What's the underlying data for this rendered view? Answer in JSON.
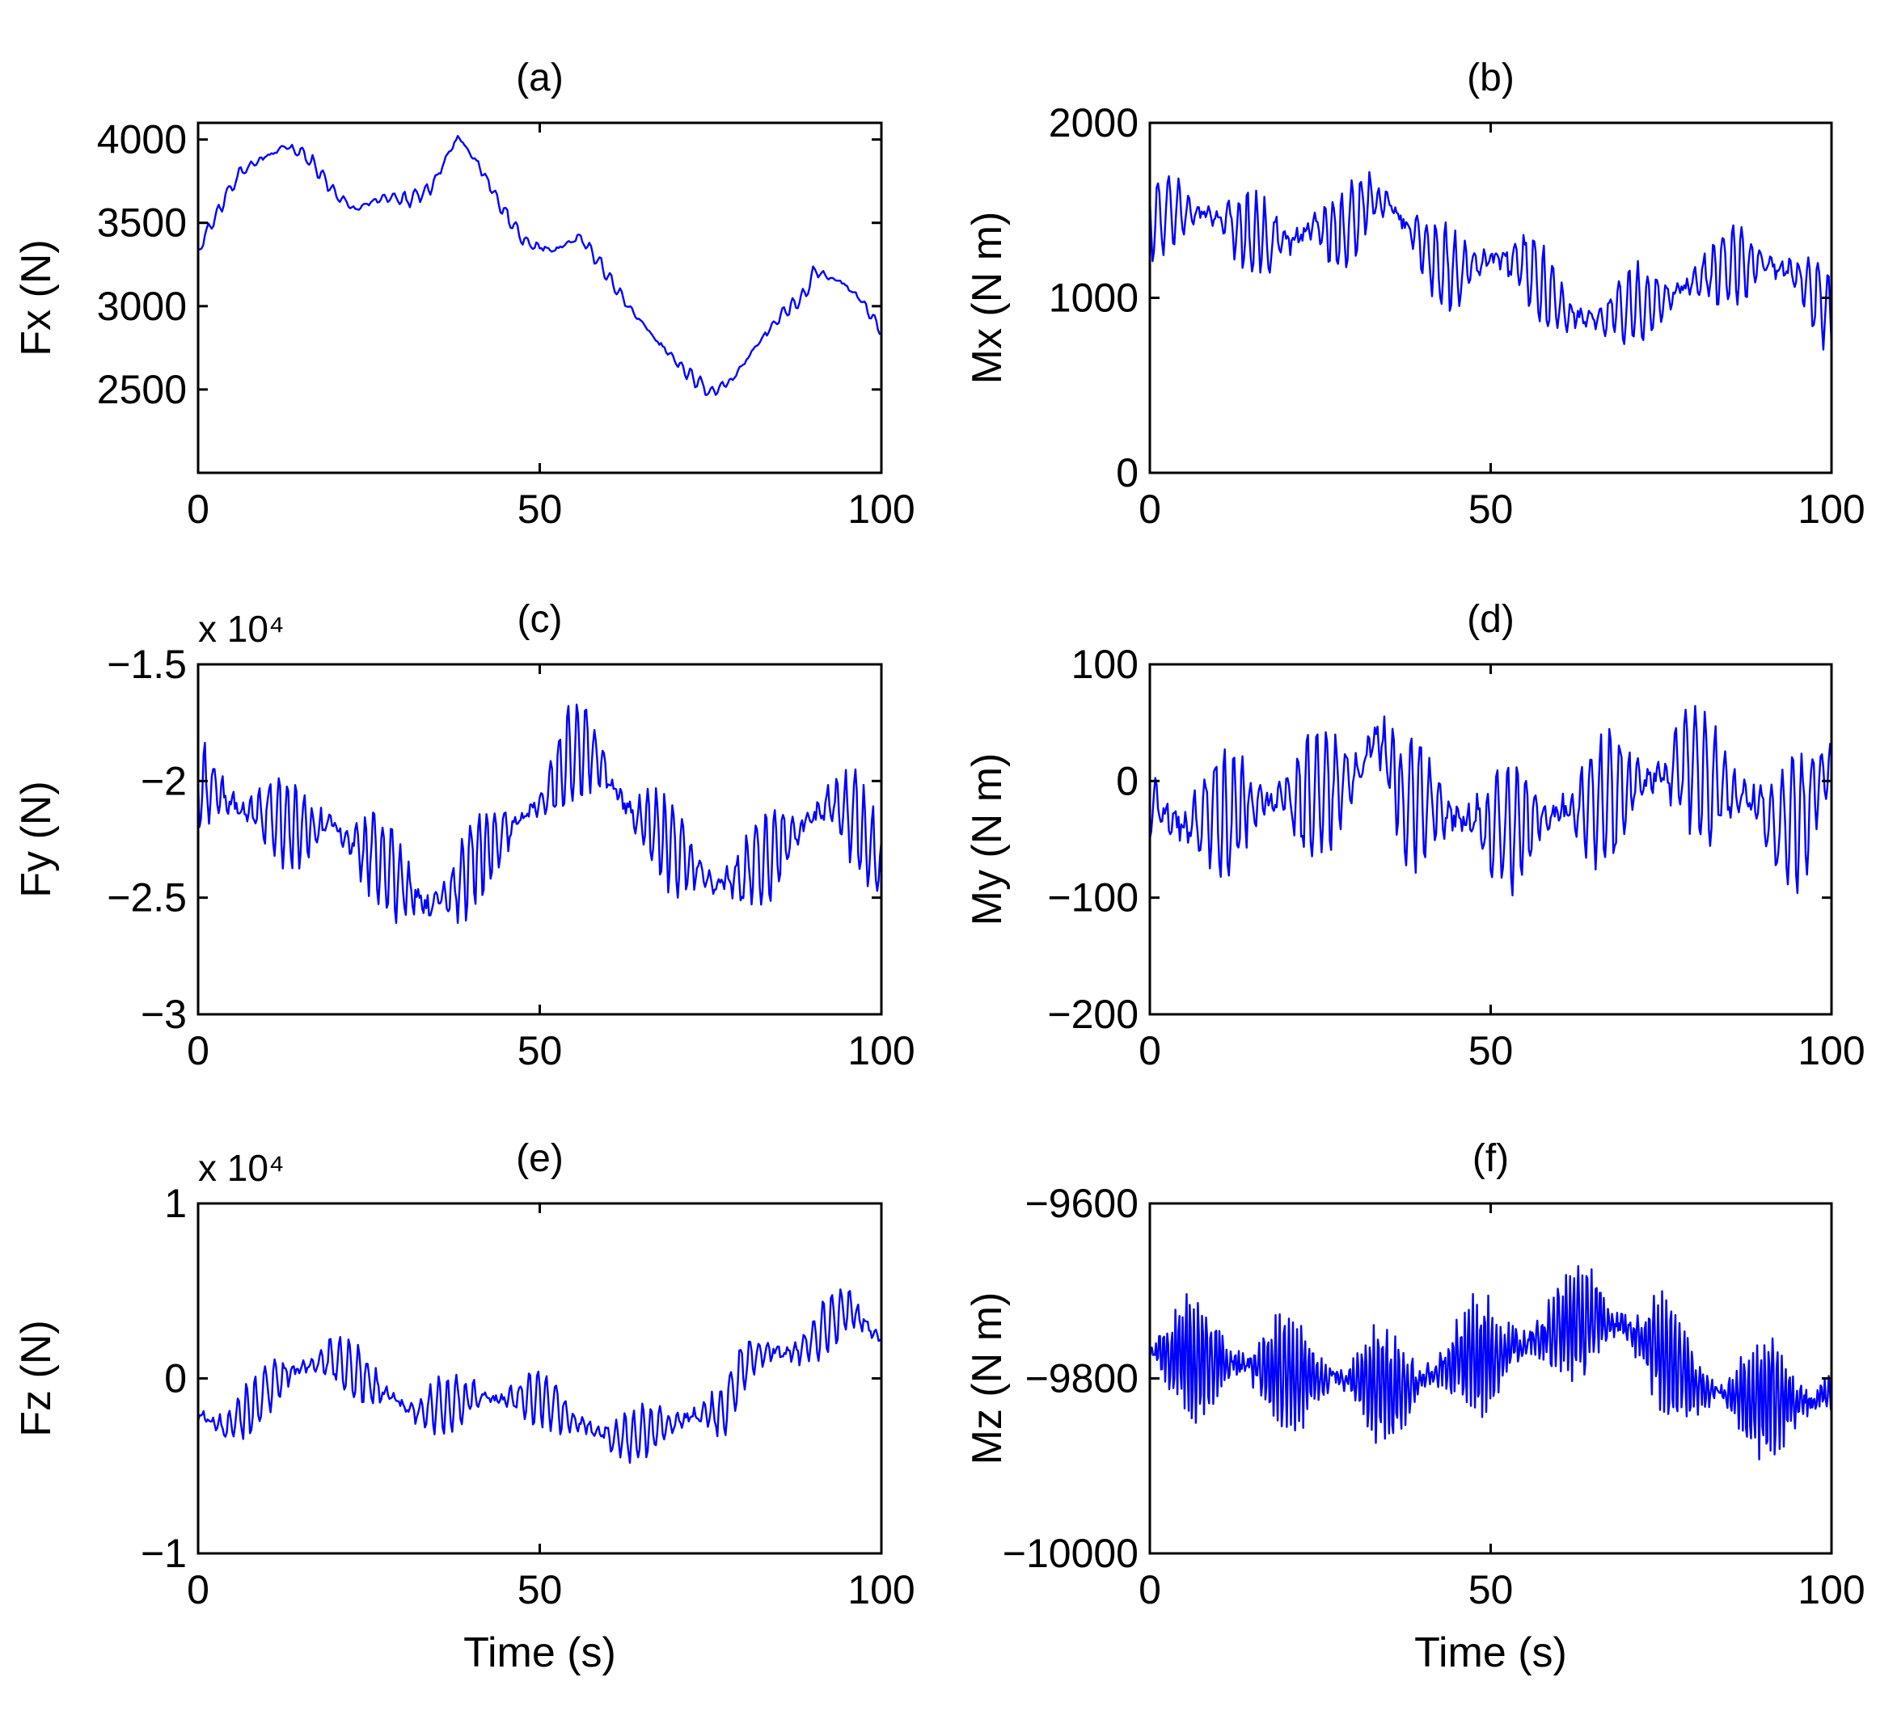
{
  "figure": {
    "line_color": "#0000ff"
  },
  "chart_data": [
    {
      "id": "a",
      "type": "line",
      "title": "(a)",
      "xlabel": "",
      "ylabel": "Fx (N)",
      "exponent": "",
      "xlim": [
        0,
        100
      ],
      "ylim": [
        2000,
        4100
      ],
      "xticks": [
        0,
        50,
        100
      ],
      "yticks": [
        2500,
        3000,
        3500,
        4000
      ],
      "ytick_labels": [
        "2500",
        "3000",
        "3500",
        "4000"
      ],
      "series": [
        {
          "name": "Fx",
          "sample_step": 0.25,
          "noise_amp": 45,
          "noise_period": 1.5,
          "keypoints": [
            [
              0,
              3330
            ],
            [
              2,
              3500
            ],
            [
              6,
              3800
            ],
            [
              10,
              3900
            ],
            [
              13,
              3960
            ],
            [
              16,
              3900
            ],
            [
              20,
              3680
            ],
            [
              23,
              3580
            ],
            [
              27,
              3650
            ],
            [
              31,
              3640
            ],
            [
              34,
              3700
            ],
            [
              38,
              4020
            ],
            [
              41,
              3850
            ],
            [
              45,
              3550
            ],
            [
              48,
              3380
            ],
            [
              52,
              3330
            ],
            [
              56,
              3420
            ],
            [
              59,
              3240
            ],
            [
              63,
              3000
            ],
            [
              67,
              2800
            ],
            [
              71,
              2620
            ],
            [
              75,
              2480
            ],
            [
              78,
              2550
            ],
            [
              82,
              2780
            ],
            [
              86,
              2980
            ],
            [
              89,
              3070
            ],
            [
              90,
              3210
            ],
            [
              94,
              3150
            ],
            [
              97,
              3040
            ],
            [
              100,
              2850
            ]
          ]
        }
      ]
    },
    {
      "id": "b",
      "type": "line",
      "title": "(b)",
      "xlabel": "",
      "ylabel": "Mx (N m)",
      "exponent": "",
      "xlim": [
        0,
        100
      ],
      "ylim": [
        0,
        2000
      ],
      "xticks": [
        0,
        50,
        100
      ],
      "yticks": [
        0,
        1000,
        2000
      ],
      "ytick_labels": [
        "0",
        "1000",
        "2000"
      ],
      "series": [
        {
          "name": "Mx",
          "sample_step": 0.2,
          "noise_amp": 230,
          "noise_period": 1.4,
          "keypoints": [
            [
              0,
              1450
            ],
            [
              4,
              1500
            ],
            [
              8,
              1480
            ],
            [
              12,
              1420
            ],
            [
              16,
              1350
            ],
            [
              20,
              1320
            ],
            [
              24,
              1400
            ],
            [
              28,
              1360
            ],
            [
              32,
              1550
            ],
            [
              35,
              1560
            ],
            [
              38,
              1400
            ],
            [
              42,
              1200
            ],
            [
              46,
              1150
            ],
            [
              50,
              1220
            ],
            [
              54,
              1200
            ],
            [
              58,
              1050
            ],
            [
              62,
              900
            ],
            [
              66,
              880
            ],
            [
              70,
              950
            ],
            [
              74,
              980
            ],
            [
              78,
              1050
            ],
            [
              82,
              1150
            ],
            [
              86,
              1200
            ],
            [
              90,
              1180
            ],
            [
              94,
              1150
            ],
            [
              97,
              1050
            ],
            [
              100,
              900
            ]
          ]
        }
      ]
    },
    {
      "id": "c",
      "type": "line",
      "title": "(c)",
      "xlabel": "",
      "ylabel": "Fy (N)",
      "exponent": "x 10⁴",
      "xlim": [
        0,
        100
      ],
      "ylim": [
        -3,
        -1.5
      ],
      "xticks": [
        0,
        50,
        100
      ],
      "yticks": [
        -3,
        -2.5,
        -2,
        -1.5
      ],
      "ytick_labels": [
        "−3",
        "−2.5",
        "−2",
        "−1.5"
      ],
      "series": [
        {
          "name": "Fy",
          "sample_step": 0.2,
          "noise_amp": 0.2,
          "noise_period": 1.3,
          "keypoints": [
            [
              0,
              -2.0
            ],
            [
              5,
              -2.1
            ],
            [
              10,
              -2.15
            ],
            [
              15,
              -2.2
            ],
            [
              20,
              -2.2
            ],
            [
              25,
              -2.3
            ],
            [
              30,
              -2.45
            ],
            [
              34,
              -2.55
            ],
            [
              38,
              -2.45
            ],
            [
              42,
              -2.3
            ],
            [
              46,
              -2.2
            ],
            [
              50,
              -2.1
            ],
            [
              54,
              -1.9
            ],
            [
              57,
              -1.85
            ],
            [
              60,
              -2.0
            ],
            [
              64,
              -2.15
            ],
            [
              68,
              -2.25
            ],
            [
              72,
              -2.35
            ],
            [
              76,
              -2.45
            ],
            [
              80,
              -2.4
            ],
            [
              84,
              -2.3
            ],
            [
              88,
              -2.2
            ],
            [
              92,
              -2.1
            ],
            [
              96,
              -2.15
            ],
            [
              100,
              -2.35
            ]
          ]
        }
      ]
    },
    {
      "id": "d",
      "type": "line",
      "title": "(d)",
      "xlabel": "",
      "ylabel": "My (N m)",
      "exponent": "",
      "xlim": [
        0,
        100
      ],
      "ylim": [
        -200,
        100
      ],
      "xticks": [
        0,
        50,
        100
      ],
      "yticks": [
        -200,
        -100,
        0,
        100
      ],
      "ytick_labels": [
        "−200",
        "−100",
        "0",
        "100"
      ],
      "series": [
        {
          "name": "My",
          "sample_step": 0.2,
          "noise_amp": 55,
          "noise_period": 1.4,
          "keypoints": [
            [
              0,
              -20
            ],
            [
              5,
              -40
            ],
            [
              10,
              -30
            ],
            [
              15,
              -20
            ],
            [
              20,
              -15
            ],
            [
              25,
              -10
            ],
            [
              30,
              5
            ],
            [
              33,
              40
            ],
            [
              35,
              20
            ],
            [
              37,
              -20
            ],
            [
              40,
              -15
            ],
            [
              45,
              -30
            ],
            [
              50,
              -40
            ],
            [
              55,
              -35
            ],
            [
              60,
              -25
            ],
            [
              65,
              -20
            ],
            [
              70,
              -5
            ],
            [
              75,
              5
            ],
            [
              78,
              15
            ],
            [
              82,
              0
            ],
            [
              86,
              -10
            ],
            [
              89,
              -20
            ],
            [
              92,
              -40
            ],
            [
              96,
              -30
            ],
            [
              100,
              20
            ]
          ]
        }
      ]
    },
    {
      "id": "e",
      "type": "line",
      "title": "(e)",
      "xlabel": "Time (s)",
      "ylabel": "Fz (N)",
      "exponent": "x 10⁴",
      "xlim": [
        0,
        100
      ],
      "ylim": [
        -1,
        1
      ],
      "xticks": [
        0,
        50,
        100
      ],
      "yticks": [
        -1,
        0,
        1
      ],
      "ytick_labels": [
        "−1",
        "0",
        "1"
      ],
      "series": [
        {
          "name": "Fz",
          "sample_step": 0.2,
          "noise_amp": 0.16,
          "noise_period": 1.3,
          "keypoints": [
            [
              0,
              -0.2
            ],
            [
              4,
              -0.28
            ],
            [
              8,
              -0.15
            ],
            [
              12,
              0.0
            ],
            [
              16,
              0.08
            ],
            [
              20,
              0.12
            ],
            [
              24,
              0.0
            ],
            [
              28,
              -0.1
            ],
            [
              32,
              -0.2
            ],
            [
              36,
              -0.15
            ],
            [
              40,
              -0.1
            ],
            [
              45,
              -0.12
            ],
            [
              50,
              -0.1
            ],
            [
              54,
              -0.22
            ],
            [
              58,
              -0.3
            ],
            [
              62,
              -0.35
            ],
            [
              66,
              -0.3
            ],
            [
              70,
              -0.25
            ],
            [
              74,
              -0.2
            ],
            [
              77,
              -0.2
            ],
            [
              80,
              0.1
            ],
            [
              84,
              0.15
            ],
            [
              88,
              0.15
            ],
            [
              92,
              0.3
            ],
            [
              95,
              0.4
            ],
            [
              98,
              0.3
            ],
            [
              100,
              0.2
            ]
          ]
        }
      ]
    },
    {
      "id": "f",
      "type": "line",
      "title": "(f)",
      "xlabel": "Time (s)",
      "ylabel": "Mz (N m)",
      "exponent": "",
      "xlim": [
        0,
        100
      ],
      "ylim": [
        -10000,
        -9600
      ],
      "xticks": [
        0,
        50,
        100
      ],
      "yticks": [
        -10000,
        -9800,
        -9600
      ],
      "ytick_labels": [
        "−10000",
        "−9800",
        "−9600"
      ],
      "series": [
        {
          "name": "Mz",
          "sample_step": 0.15,
          "noise_amp": 65,
          "noise_period": 0.6,
          "keypoints": [
            [
              0,
              -9770
            ],
            [
              10,
              -9780
            ],
            [
              20,
              -9795
            ],
            [
              30,
              -9800
            ],
            [
              38,
              -9810
            ],
            [
              45,
              -9780
            ],
            [
              52,
              -9770
            ],
            [
              58,
              -9750
            ],
            [
              65,
              -9730
            ],
            [
              70,
              -9740
            ],
            [
              75,
              -9770
            ],
            [
              80,
              -9810
            ],
            [
              86,
              -9820
            ],
            [
              90,
              -9820
            ],
            [
              95,
              -9830
            ],
            [
              100,
              -9820
            ]
          ]
        }
      ]
    }
  ]
}
